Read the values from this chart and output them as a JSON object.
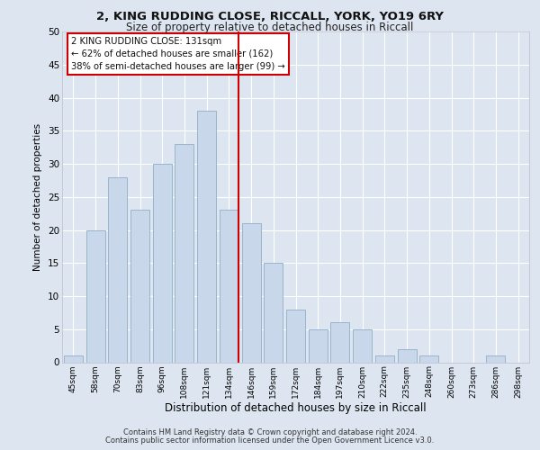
{
  "title1": "2, KING RUDDING CLOSE, RICCALL, YORK, YO19 6RY",
  "title2": "Size of property relative to detached houses in Riccall",
  "xlabel": "Distribution of detached houses by size in Riccall",
  "ylabel": "Number of detached properties",
  "categories": [
    "45sqm",
    "58sqm",
    "70sqm",
    "83sqm",
    "96sqm",
    "108sqm",
    "121sqm",
    "134sqm",
    "146sqm",
    "159sqm",
    "172sqm",
    "184sqm",
    "197sqm",
    "210sqm",
    "222sqm",
    "235sqm",
    "248sqm",
    "260sqm",
    "273sqm",
    "286sqm",
    "298sqm"
  ],
  "values": [
    1,
    20,
    28,
    23,
    30,
    33,
    38,
    23,
    21,
    15,
    8,
    5,
    6,
    5,
    1,
    2,
    1,
    0,
    0,
    1,
    0
  ],
  "bar_color": "#c8d8ea",
  "bar_edge_color": "#9ab4cc",
  "vline_color": "#cc0000",
  "annotation_title": "2 KING RUDDING CLOSE: 131sqm",
  "annotation_line1": "← 62% of detached houses are smaller (162)",
  "annotation_line2": "38% of semi-detached houses are larger (99) →",
  "annotation_box_color": "#cc0000",
  "ylim": [
    0,
    50
  ],
  "yticks": [
    0,
    5,
    10,
    15,
    20,
    25,
    30,
    35,
    40,
    45,
    50
  ],
  "background_color": "#dde6f0",
  "plot_bg_color": "#dde6f0",
  "grid_color": "#ffffff",
  "footer1": "Contains HM Land Registry data © Crown copyright and database right 2024.",
  "footer2": "Contains public sector information licensed under the Open Government Licence v3.0."
}
